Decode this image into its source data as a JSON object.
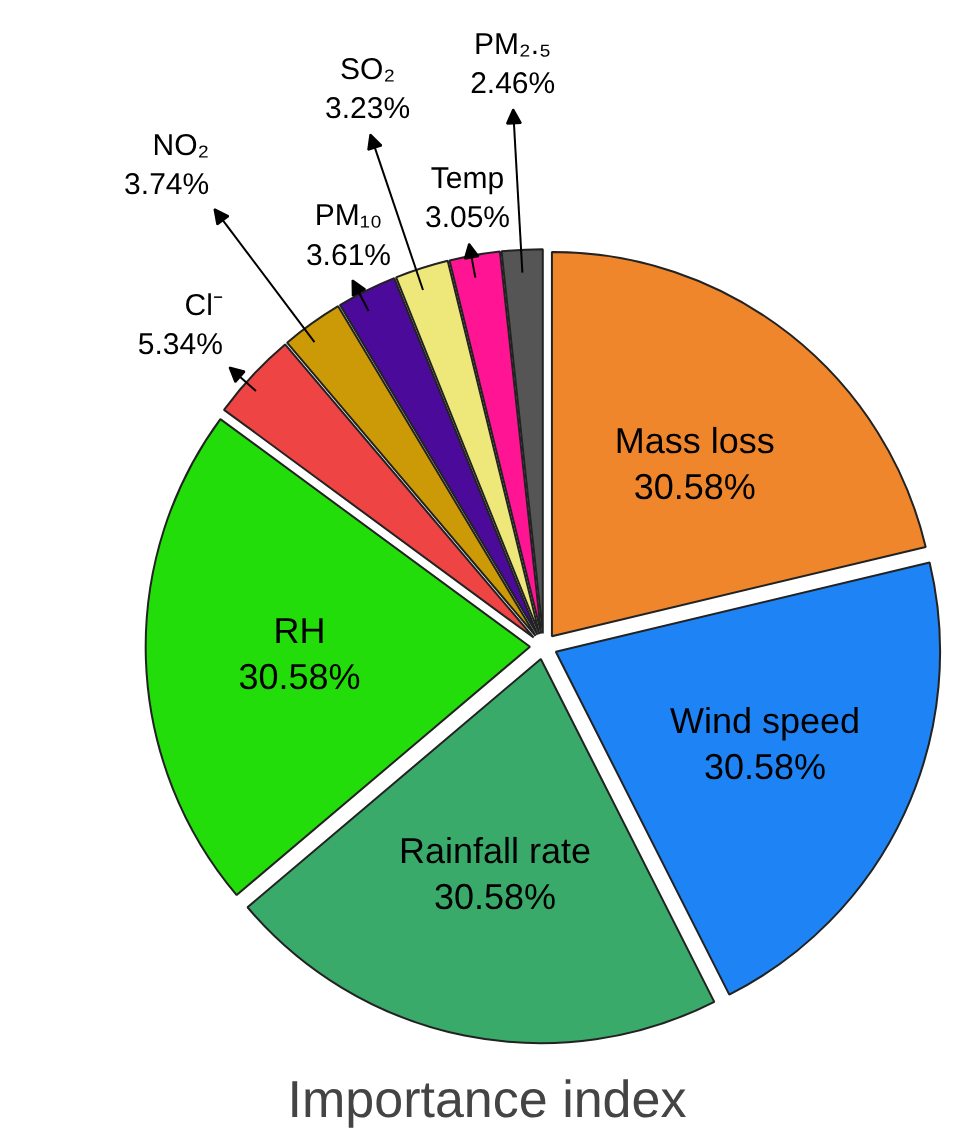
{
  "chart_data": {
    "type": "pie",
    "title": "Importance index",
    "categories": [
      "Mass loss",
      "Wind speed",
      "Rainfall rate",
      "RH",
      "Cl⁻",
      "NO₂",
      "PM₁₀",
      "SO₂",
      "Temp",
      "PM₂.₅"
    ],
    "values": [
      30.58,
      30.58,
      30.58,
      30.58,
      5.34,
      3.74,
      3.61,
      3.23,
      3.05,
      2.46
    ],
    "value_labels": [
      "30.58%",
      "30.58%",
      "30.58%",
      "30.58%",
      "5.34%",
      "3.74%",
      "3.61%",
      "3.23%",
      "3.05%",
      "2.46%"
    ],
    "colors": [
      "#f0862c",
      "#1e84f5",
      "#3aaa6a",
      "#22dd0a",
      "#ee4444",
      "#cc9a06",
      "#4b0a9a",
      "#eee87a",
      "#ff1493",
      "#555555"
    ]
  }
}
